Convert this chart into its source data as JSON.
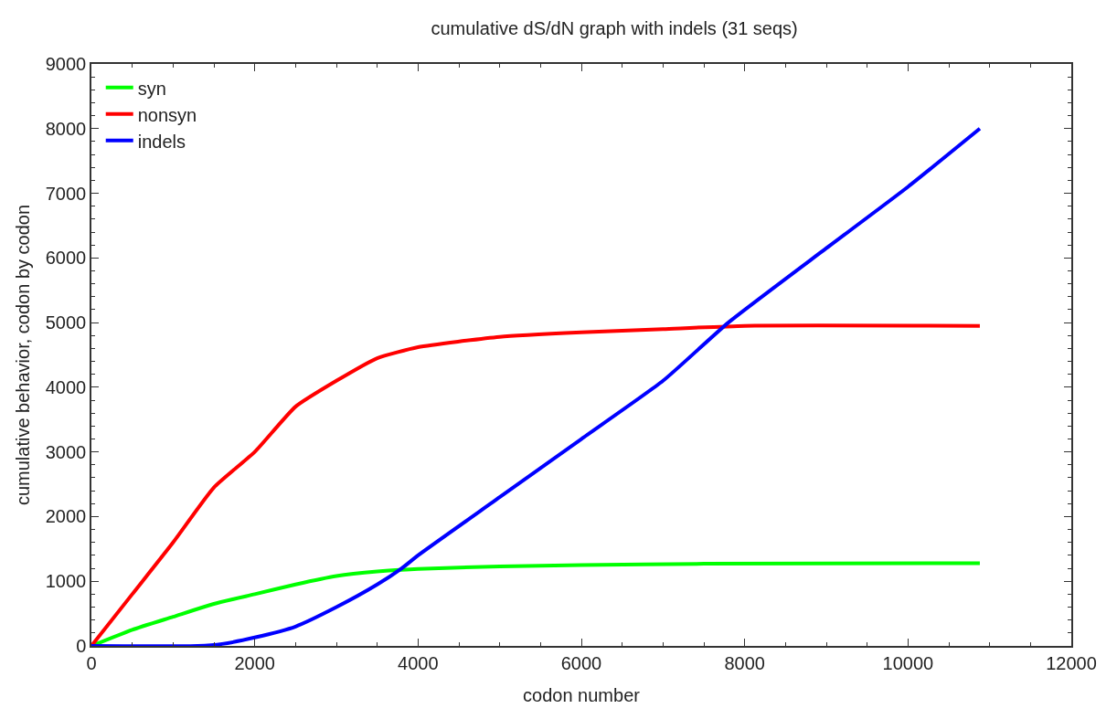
{
  "chart_data": {
    "type": "line",
    "title": "cumulative dS/dN graph with indels (31 seqs)",
    "xlabel": "codon number",
    "ylabel": "cumulative behavior, codon by codon",
    "xlim": [
      0,
      12000
    ],
    "xticks": [
      0,
      2000,
      4000,
      6000,
      8000,
      10000,
      12000
    ],
    "ylim": [
      0,
      9000
    ],
    "yticks": [
      0,
      1000,
      2000,
      3000,
      4000,
      5000,
      6000,
      7000,
      8000,
      9000
    ],
    "legend": "top left",
    "marker": "none",
    "line_style": "solid",
    "series": [
      {
        "name": "syn",
        "color": "#00ff00",
        "x": [
          0,
          500,
          1000,
          1500,
          2000,
          2500,
          3000,
          3500,
          4000,
          5000,
          6000,
          7500,
          10880
        ],
        "values": [
          0,
          250,
          450,
          650,
          800,
          950,
          1080,
          1150,
          1190,
          1230,
          1250,
          1270,
          1280
        ]
      },
      {
        "name": "nonsyn",
        "color": "#ff0000",
        "x": [
          0,
          500,
          1000,
          1500,
          2000,
          2500,
          3000,
          3500,
          4000,
          5000,
          6000,
          7000,
          8000,
          10880
        ],
        "values": [
          0,
          800,
          1600,
          2450,
          3000,
          3700,
          4100,
          4450,
          4620,
          4780,
          4850,
          4900,
          4950,
          4950
        ]
      },
      {
        "name": "indels",
        "color": "#0000ff",
        "x": [
          0,
          1300,
          1600,
          2000,
          2500,
          3000,
          3500,
          3800,
          4000,
          5000,
          6000,
          7000,
          7800,
          9000,
          10000,
          10880
        ],
        "values": [
          0,
          0,
          30,
          130,
          300,
          600,
          950,
          1200,
          1400,
          2300,
          3200,
          4100,
          5000,
          6150,
          7100,
          8000
        ]
      }
    ]
  }
}
